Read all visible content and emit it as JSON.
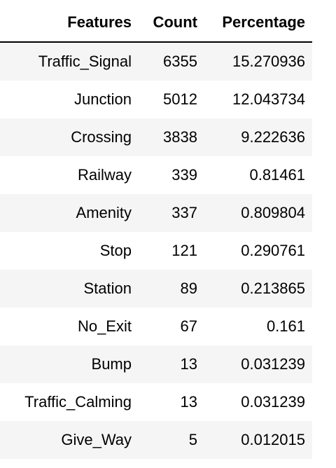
{
  "chart_data": {
    "type": "table",
    "columns": [
      "Features",
      "Count",
      "Percentage"
    ],
    "rows": [
      [
        "Traffic_Signal",
        "6355",
        "15.270936"
      ],
      [
        "Junction",
        "5012",
        "12.043734"
      ],
      [
        "Crossing",
        "3838",
        "9.222636"
      ],
      [
        "Railway",
        "339",
        "0.81461"
      ],
      [
        "Amenity",
        "337",
        "0.809804"
      ],
      [
        "Stop",
        "121",
        "0.290761"
      ],
      [
        "Station",
        "89",
        "0.213865"
      ],
      [
        "No_Exit",
        "67",
        "0.161"
      ],
      [
        "Bump",
        "13",
        "0.031239"
      ],
      [
        "Traffic_Calming",
        "13",
        "0.031239"
      ],
      [
        "Give_Way",
        "5",
        "0.012015"
      ]
    ]
  },
  "colors": {
    "stripe": "#f5f5f5",
    "header_rule": "#000000"
  }
}
